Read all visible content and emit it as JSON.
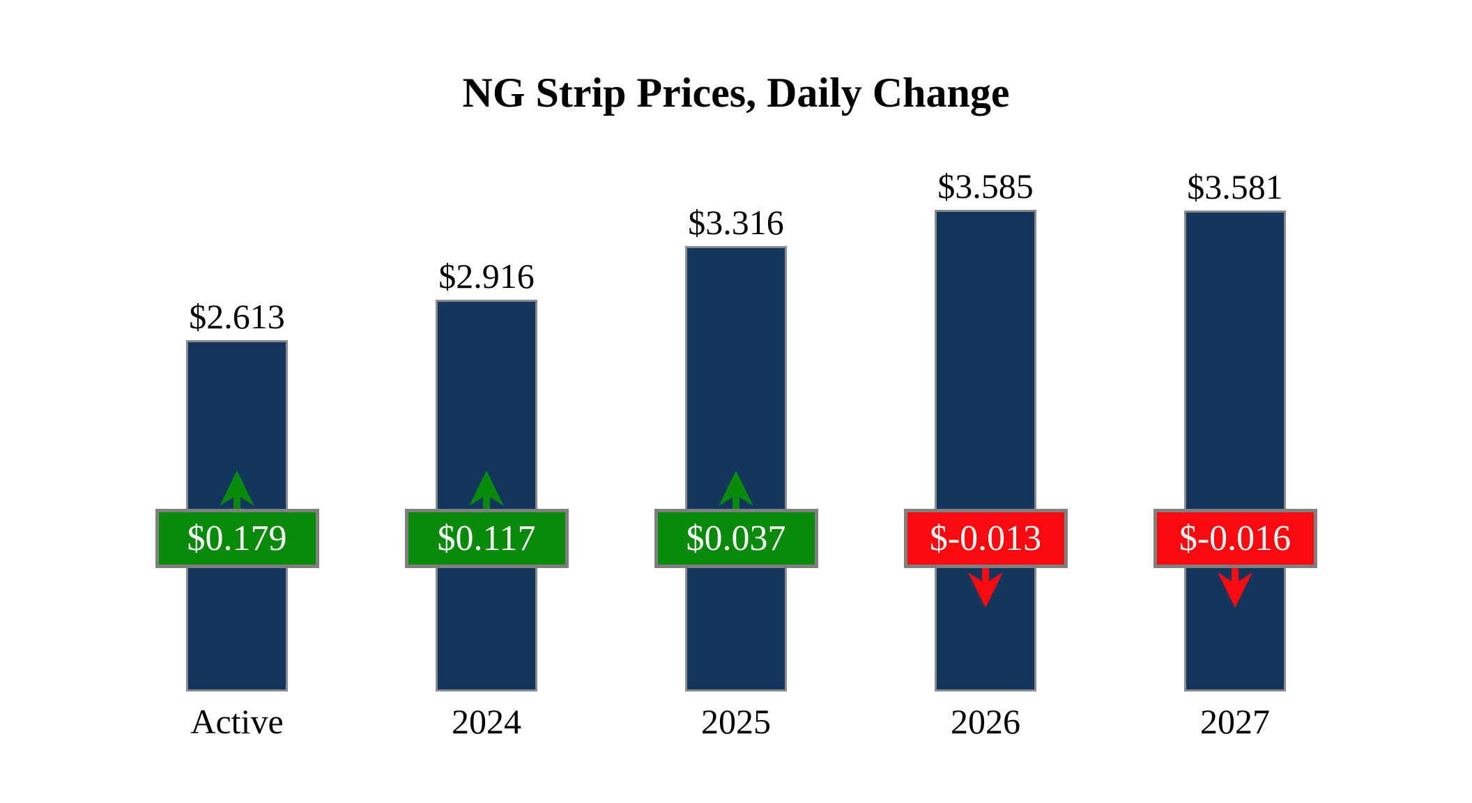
{
  "chart_data": {
    "type": "bar",
    "title": "NG Strip Prices, Daily Change",
    "categories": [
      "Active",
      "2024",
      "2025",
      "2026",
      "2027"
    ],
    "series": [
      {
        "name": "Strip Price",
        "values": [
          2.613,
          2.916,
          3.316,
          3.585,
          3.581
        ],
        "labels": [
          "$2.613",
          "$2.916",
          "$3.316",
          "$3.585",
          "$3.581"
        ]
      },
      {
        "name": "Daily Change",
        "values": [
          0.179,
          0.117,
          0.037,
          -0.013,
          -0.016
        ],
        "labels": [
          "$0.179",
          "$0.117",
          "$0.037",
          "$-0.013",
          "$-0.016"
        ]
      }
    ],
    "ylim": [
      0,
      3.585
    ],
    "grid": false,
    "legend": "none",
    "axes_shown": false,
    "colors": {
      "bar": "#12365E",
      "bar_border": "#8A8A8A",
      "positive": "#0A8A0A",
      "negative": "#FA0A0F",
      "badge_border": "#7F7F7F",
      "badge_text": "#FFFFFF",
      "label_text": "#000000",
      "background": "#FFFFFF"
    }
  }
}
